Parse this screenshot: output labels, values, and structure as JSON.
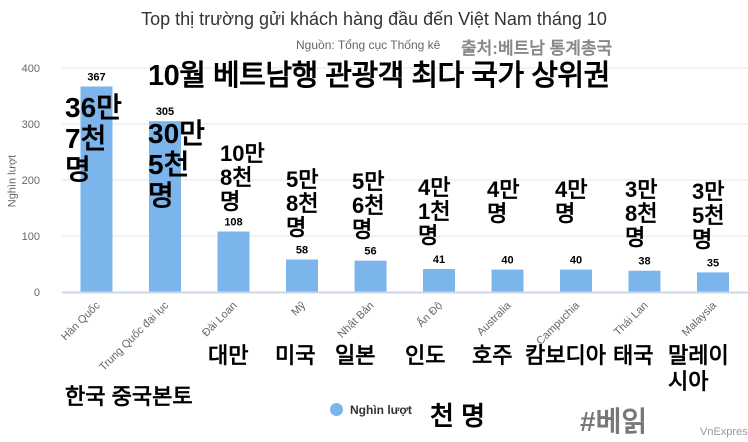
{
  "chart_data": {
    "type": "bar",
    "title": "Top thị trường gửi khách hàng đầu đến Việt Nam tháng 10",
    "subtitle": "Nguồn: Tổng cục Thống kê",
    "ylabel": "Nghìn lượt",
    "xlabel": "",
    "ylim": [
      0,
      400
    ],
    "yticks": [
      0,
      100,
      200,
      300,
      400
    ],
    "grid": true,
    "legend_position": "bottom",
    "categories": [
      "Hàn Quốc",
      "Trung Quốc đại lục",
      "Đài Loan",
      "Mỹ",
      "Nhật Bản",
      "Ấn Độ",
      "Australia",
      "Campuchia",
      "Thái Lan",
      "Malaysia"
    ],
    "series": [
      {
        "name": "Nghìn lượt",
        "values": [
          367,
          305,
          108,
          58,
          56,
          41,
          40,
          40,
          38,
          35
        ],
        "color": "#7cb5ec"
      }
    ]
  },
  "overlay": {
    "source_kr": "출처:베트남 통계총국",
    "headline_kr": "10월 베트남행 관광객 최다 국가 상위권",
    "value_kr": [
      "36만\n7천\n명",
      "30만\n5천\n명",
      "10만\n8천\n명",
      "5만\n8천\n명",
      "5만\n6천\n명",
      "4만\n1천\n명",
      "4만\n명",
      "4만\n명",
      "3만\n8천\n명",
      "3만\n5천\n명"
    ],
    "country_kr": [
      "대만",
      "미국",
      "일본",
      "인도",
      "호주",
      "캄보디아",
      "태국",
      "말레이\n시아"
    ],
    "country_kr_bottom": "한국 중국본토",
    "legend_kr": "천 명",
    "tag": "#베읽"
  },
  "credit": "VnExpress"
}
